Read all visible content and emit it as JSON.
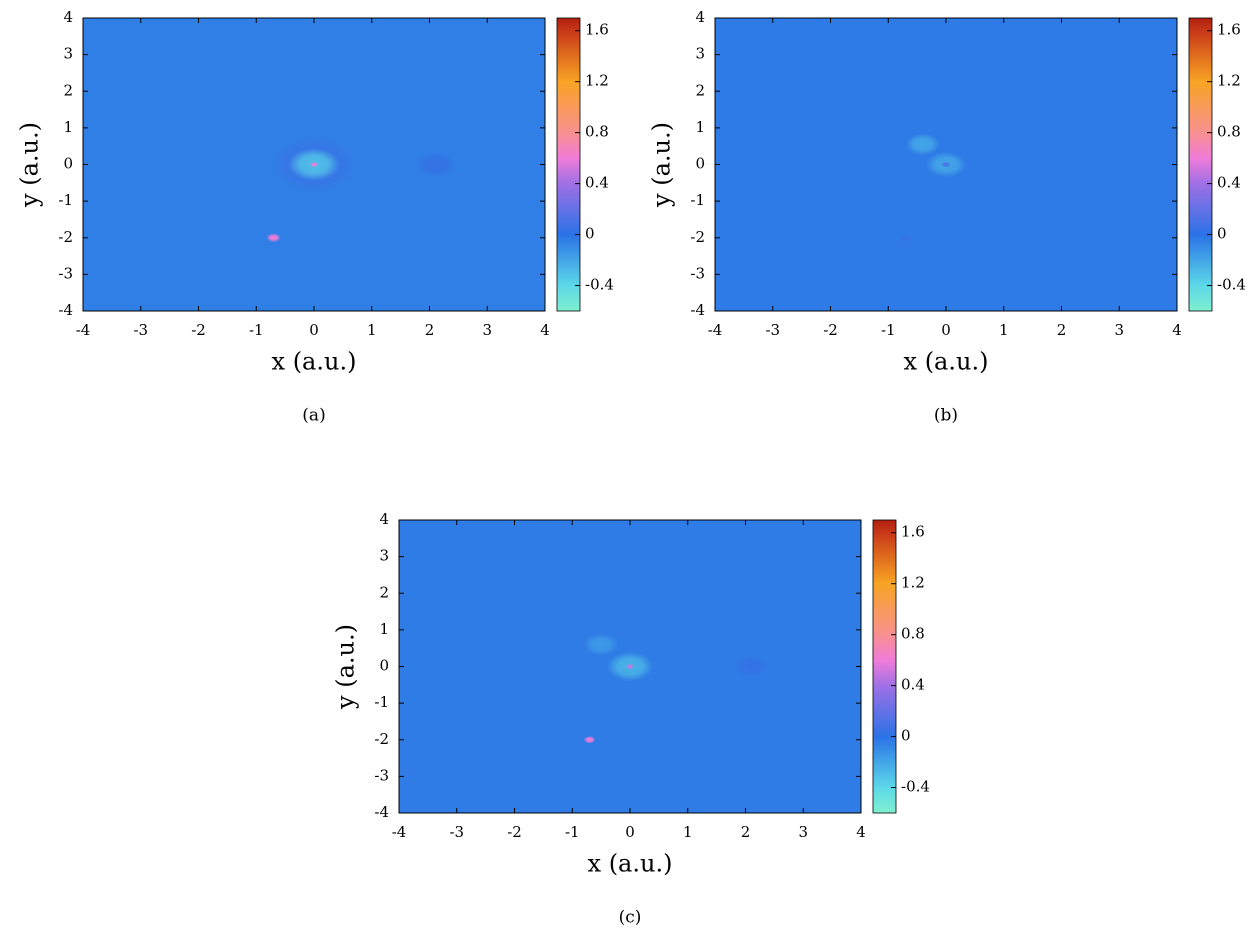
{
  "chart_data": [
    {
      "type": "heatmap",
      "caption": "(a)",
      "xlabel": "x (a.u.)",
      "ylabel": "y (a.u.)",
      "xlim": [
        -4,
        4
      ],
      "ylim": [
        -4,
        4
      ],
      "xticks": [
        -4,
        -3,
        -2,
        -1,
        0,
        1,
        2,
        3,
        4
      ],
      "yticks": [
        -4,
        -3,
        -2,
        -1,
        0,
        1,
        2,
        3,
        4
      ],
      "zlim": [
        -0.6,
        1.7
      ],
      "zticks": [
        -0.4,
        0,
        0.4,
        0.8,
        1.2,
        1.6
      ],
      "colorscale": [
        [
          -0.6,
          "#7ff0d0"
        ],
        [
          -0.4,
          "#5cd8e8"
        ],
        [
          0,
          "#2a72e6"
        ],
        [
          0.4,
          "#a070e6"
        ],
        [
          0.6,
          "#f07cd8"
        ],
        [
          0.8,
          "#f89090"
        ],
        [
          1.2,
          "#f8a424"
        ],
        [
          1.6,
          "#c83818"
        ],
        [
          1.7,
          "#b02010"
        ]
      ],
      "background_value": -0.05,
      "x": [
        0,
        0,
        0,
        -0.7,
        2.1
      ],
      "y": [
        0,
        0,
        0,
        -2,
        0
      ],
      "values": [
        0.05,
        -0.3,
        0.6,
        0.6,
        0.03
      ],
      "sizes": [
        0.75,
        0.45,
        0.07,
        0.12,
        0.35
      ]
    },
    {
      "type": "heatmap",
      "caption": "(b)",
      "xlabel": "x (a.u.)",
      "ylabel": "y (a.u.)",
      "xlim": [
        -4,
        4
      ],
      "ylim": [
        -4,
        4
      ],
      "xticks": [
        -4,
        -3,
        -2,
        -1,
        0,
        1,
        2,
        3,
        4
      ],
      "yticks": [
        -4,
        -3,
        -2,
        -1,
        0,
        1,
        2,
        3,
        4
      ],
      "zlim": [
        -0.6,
        1.7
      ],
      "zticks": [
        -0.4,
        0,
        0.4,
        0.8,
        1.2,
        1.6
      ],
      "colorscale": [
        [
          -0.6,
          "#7ff0d0"
        ],
        [
          -0.4,
          "#5cd8e8"
        ],
        [
          0,
          "#2a72e6"
        ],
        [
          0.4,
          "#a070e6"
        ],
        [
          0.6,
          "#f07cd8"
        ],
        [
          0.8,
          "#f89090"
        ],
        [
          1.2,
          "#f8a424"
        ],
        [
          1.6,
          "#c83818"
        ],
        [
          1.7,
          "#b02010"
        ]
      ],
      "background_value": -0.03,
      "x": [
        -0.4,
        0,
        0,
        -0.7
      ],
      "y": [
        0.55,
        0,
        0,
        -2
      ],
      "values": [
        -0.2,
        -0.2,
        0.1,
        0.05
      ],
      "sizes": [
        0.3,
        0.35,
        0.08,
        0.1
      ]
    },
    {
      "type": "heatmap",
      "caption": "(c)",
      "xlabel": "x (a.u.)",
      "ylabel": "y (a.u.)",
      "xlim": [
        -4,
        4
      ],
      "ylim": [
        -4,
        4
      ],
      "xticks": [
        -4,
        -3,
        -2,
        -1,
        0,
        1,
        2,
        3,
        4
      ],
      "yticks": [
        -4,
        -3,
        -2,
        -1,
        0,
        1,
        2,
        3,
        4
      ],
      "zlim": [
        -0.6,
        1.7
      ],
      "zticks": [
        -0.4,
        0,
        0.4,
        0.8,
        1.2,
        1.6
      ],
      "colorscale": [
        [
          -0.6,
          "#7ff0d0"
        ],
        [
          -0.4,
          "#5cd8e8"
        ],
        [
          0,
          "#2a72e6"
        ],
        [
          0.4,
          "#a070e6"
        ],
        [
          0.6,
          "#f07cd8"
        ],
        [
          0.8,
          "#f89090"
        ],
        [
          1.2,
          "#f8a424"
        ],
        [
          1.6,
          "#c83818"
        ],
        [
          1.7,
          "#b02010"
        ]
      ],
      "background_value": -0.04,
      "x": [
        -0.5,
        0,
        0,
        -0.7,
        2.1
      ],
      "y": [
        0.6,
        0,
        0,
        -2,
        0
      ],
      "values": [
        -0.15,
        -0.25,
        0.5,
        0.6,
        0.03
      ],
      "sizes": [
        0.3,
        0.4,
        0.07,
        0.1,
        0.3
      ]
    }
  ]
}
